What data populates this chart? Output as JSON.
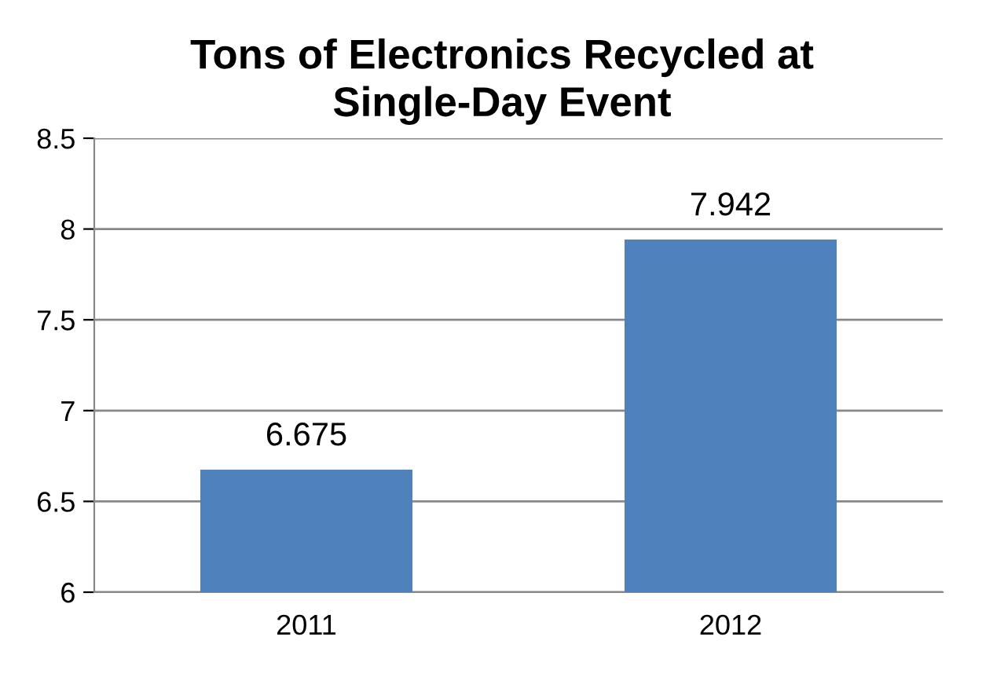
{
  "chart_data": {
    "type": "bar",
    "title": "Tons of Electronics Recycled at\nSingle-Day Event",
    "categories": [
      "2011",
      "2012"
    ],
    "values": [
      6.675,
      7.942
    ],
    "color": "#4f81bd",
    "ylim": [
      6,
      8.5
    ],
    "yticks": [
      6,
      6.5,
      7,
      7.5,
      8,
      8.5
    ],
    "grid": "y",
    "data_labels": true
  }
}
